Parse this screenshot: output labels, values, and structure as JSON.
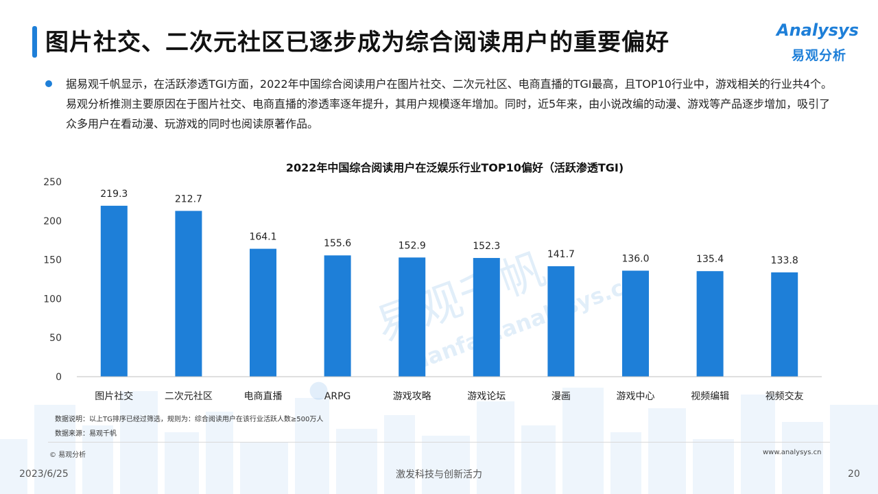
{
  "header": {
    "title": "图片社交、二次元社区已逐步成为综合阅读用户的重要偏好",
    "logo_en": "Analysys",
    "logo_cn": "易观分析"
  },
  "intro": "据易观千帆显示，在活跃渗透TGI方面，2022年中国综合阅读用户在图片社交、二次元社区、电商直播的TGI最高，且TOP10行业中，游戏相关的行业共4个。易观分析推测主要原因在于图片社交、电商直播的渗透率逐年提升，其用户规模逐年增加。同时，近5年来，由小说改编的动漫、游戏等产品逐步增加，吸引了众多用户在看动漫、玩游戏的同时也阅读原著作品。",
  "chart_data": {
    "type": "bar",
    "title": "2022年中国综合阅读用户在泛娱乐行业TOP10偏好（活跃渗透TGI)",
    "categories": [
      "图片社交",
      "二次元社区",
      "电商直播",
      "ARPG",
      "游戏攻略",
      "游戏论坛",
      "漫画",
      "游戏中心",
      "视频编辑",
      "视频交友"
    ],
    "values": [
      219.3,
      212.7,
      164.1,
      155.6,
      152.9,
      152.3,
      141.7,
      136.0,
      135.4,
      133.8
    ],
    "value_labels": [
      "219.3",
      "212.7",
      "164.1",
      "155.6",
      "152.9",
      "152.3",
      "141.7",
      "136.0",
      "135.4",
      "133.8"
    ],
    "yticks": [
      "0",
      "50",
      "100",
      "150",
      "200",
      "250"
    ],
    "ylim": [
      0,
      250
    ],
    "xlabel": "",
    "ylabel": "",
    "grid": false,
    "bar_color": "#1e7fd8"
  },
  "watermark": {
    "cn": "易观千帆",
    "en": "Qianfan.analysys.cn"
  },
  "notes": {
    "explanation": "数据说明：以上TG排序已经过筛选，规则为：综合阅读用户在该行业活跃人数≥500万人",
    "source": "数据来源：易观千帆"
  },
  "footer": {
    "copyright": "© 易观分析",
    "website": "www.analysys.cn",
    "date": "2023/6/25",
    "slogan": "激发科技与创新活力",
    "page_number": "20"
  }
}
